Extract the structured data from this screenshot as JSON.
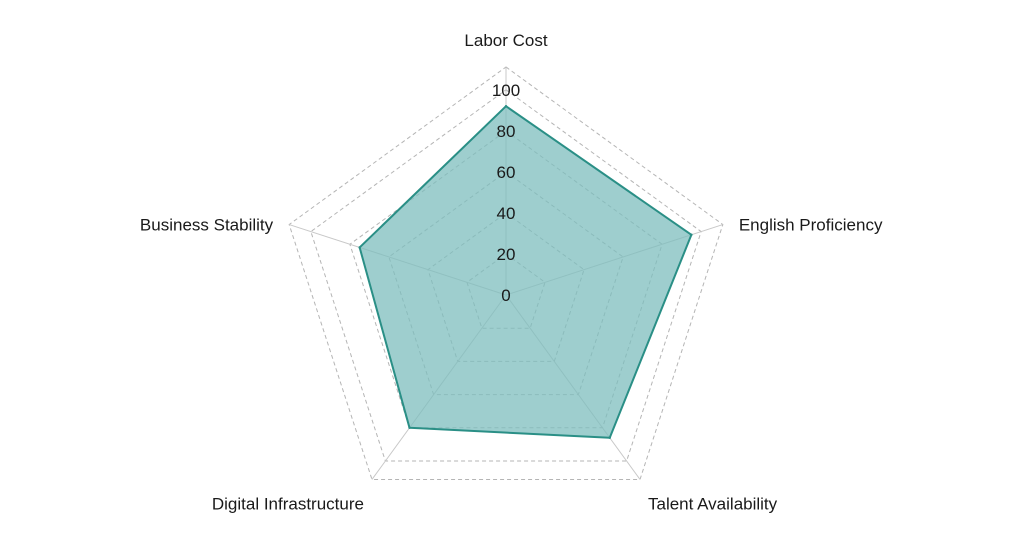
{
  "chart_data": {
    "type": "radar",
    "axes": [
      "Labor Cost",
      "English Proficiency",
      "Talent Availability",
      "Digital Infrastructure",
      "Business Stability"
    ],
    "ticks": [
      "0",
      "20",
      "40",
      "60",
      "80",
      "100"
    ],
    "range": [
      0,
      100
    ],
    "series": [
      {
        "values": [
          92,
          95,
          86,
          80,
          75
        ]
      }
    ],
    "grid": true,
    "colors": {
      "fill": "#7dbdbd",
      "stroke": "#2a8f86",
      "grid": "#b5b5b5",
      "axis": "#c8c8c8"
    }
  }
}
